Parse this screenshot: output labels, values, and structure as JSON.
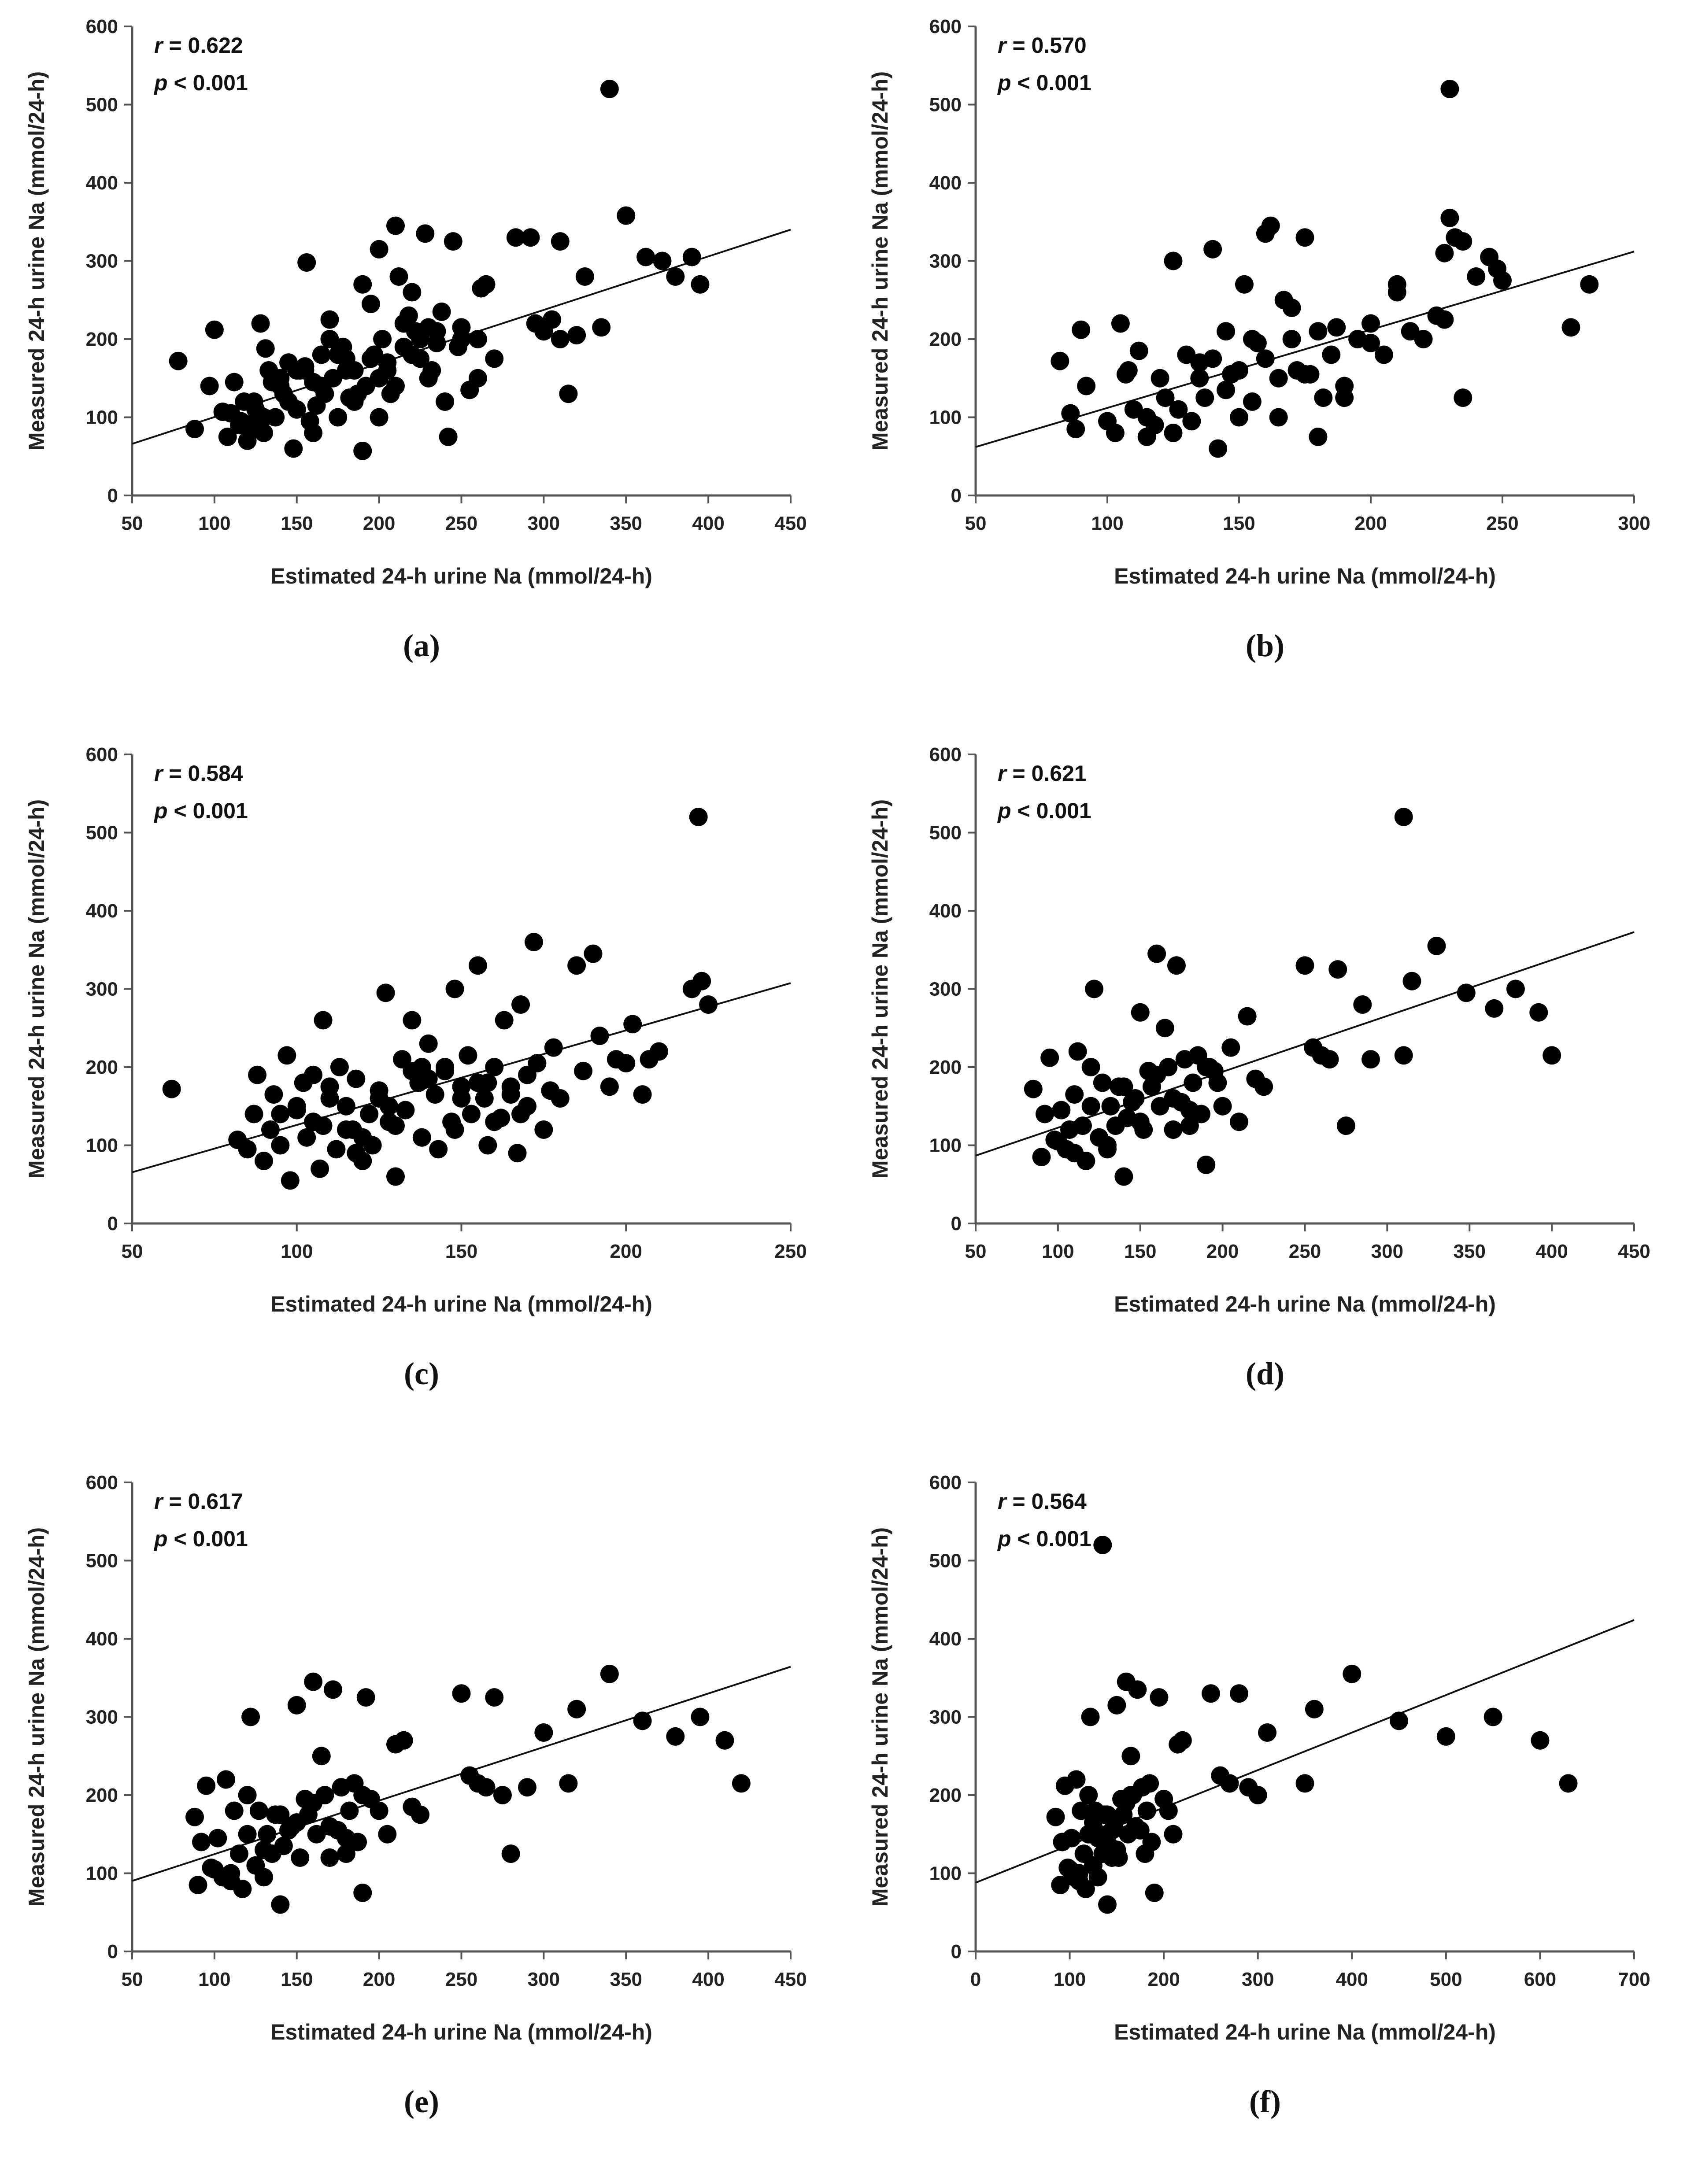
{
  "figure": {
    "ylabel": "Measured 24-h urine Na (mmol/24-h)",
    "xlabel": "Estimated 24-h urine Na (mmol/24-h)"
  },
  "chart_data": [
    {
      "panel": "(a)",
      "type": "scatter",
      "r_prefix": "r",
      "r_value": "= 0.622",
      "p_prefix": "p",
      "p_value": "< 0.001",
      "xlabel": "Estimated 24-h urine Na (mmol/24-h)",
      "ylabel": "Measured 24-h urine Na (mmol/24-h)",
      "xlim": [
        50,
        450
      ],
      "xticks": [
        50,
        100,
        150,
        200,
        250,
        300,
        350,
        400,
        450
      ],
      "ylim": [
        0,
        600
      ],
      "yticks": [
        0,
        100,
        200,
        300,
        400,
        500,
        600
      ],
      "fit": {
        "slope": 0.685,
        "intercept": 31.8
      },
      "x": [
        78,
        88,
        97,
        100,
        105,
        110,
        112,
        116,
        118,
        120,
        122,
        124,
        126,
        128,
        130,
        131,
        133,
        135,
        137,
        140,
        142,
        145,
        148,
        150,
        152,
        155,
        156,
        158,
        160,
        162,
        165,
        167,
        170,
        172,
        175,
        178,
        180,
        182,
        185,
        187,
        190,
        192,
        195,
        197,
        200,
        202,
        205,
        207,
        210,
        212,
        215,
        218,
        220,
        222,
        225,
        228,
        230,
        232,
        235,
        238,
        240,
        242,
        245,
        248,
        250,
        255,
        260,
        262,
        265,
        270,
        292,
        295,
        300,
        305,
        310,
        315,
        320,
        325,
        335,
        340,
        350,
        362,
        372,
        380,
        390,
        395,
        210,
        225,
        200,
        190,
        160,
        175,
        205,
        215,
        235,
        145,
        125,
        115,
        108,
        140,
        155,
        170,
        185,
        200,
        220,
        180,
        165,
        150,
        130,
        120,
        195,
        230,
        250,
        260,
        283,
        300,
        310
      ],
      "y": [
        172,
        85,
        140,
        212,
        107,
        105,
        145,
        95,
        120,
        90,
        85,
        120,
        100,
        220,
        80,
        188,
        160,
        145,
        100,
        150,
        130,
        170,
        60,
        110,
        160,
        165,
        298,
        95,
        145,
        115,
        180,
        130,
        225,
        150,
        100,
        190,
        175,
        125,
        160,
        130,
        57,
        140,
        245,
        180,
        150,
        200,
        170,
        130,
        140,
        280,
        190,
        230,
        260,
        210,
        175,
        335,
        150,
        160,
        210,
        235,
        120,
        75,
        325,
        190,
        215,
        135,
        200,
        265,
        270,
        175,
        330,
        220,
        210,
        225,
        200,
        130,
        205,
        280,
        215,
        520,
        358,
        305,
        300,
        280,
        305,
        270,
        345,
        200,
        315,
        270,
        80,
        180,
        160,
        220,
        195,
        120,
        110,
        90,
        75,
        140,
        160,
        200,
        120,
        100,
        180,
        160,
        140,
        160,
        100,
        70,
        175,
        215,
        200,
        150,
        330,
        210,
        325
      ]
    },
    {
      "panel": "(b)",
      "type": "scatter",
      "r_prefix": "r",
      "r_value": "= 0.570",
      "p_prefix": "p",
      "p_value": "< 0.001",
      "xlabel": "Estimated 24-h urine Na (mmol/24-h)",
      "ylabel": "Measured 24-h urine Na (mmol/24-h)",
      "xlim": [
        50,
        300
      ],
      "xticks": [
        50,
        100,
        150,
        200,
        250,
        300
      ],
      "ylim": [
        0,
        600
      ],
      "yticks": [
        0,
        100,
        200,
        300,
        400,
        500,
        600
      ],
      "fit": {
        "slope": 1.0,
        "intercept": 12
      },
      "x": [
        82,
        86,
        88,
        90,
        92,
        100,
        103,
        105,
        107,
        110,
        112,
        115,
        118,
        120,
        122,
        125,
        127,
        130,
        132,
        135,
        137,
        140,
        142,
        145,
        147,
        150,
        152,
        155,
        157,
        160,
        162,
        165,
        167,
        170,
        172,
        175,
        177,
        180,
        182,
        185,
        187,
        190,
        195,
        200,
        205,
        210,
        215,
        220,
        225,
        228,
        230,
        232,
        235,
        240,
        245,
        248,
        250,
        276,
        283,
        125,
        140,
        150,
        160,
        170,
        180,
        190,
        200,
        210,
        145,
        135,
        155,
        165,
        175,
        115,
        108,
        230,
        228,
        235
      ],
      "y": [
        172,
        105,
        85,
        212,
        140,
        95,
        80,
        220,
        155,
        110,
        185,
        100,
        90,
        150,
        125,
        300,
        110,
        180,
        95,
        150,
        125,
        175,
        60,
        135,
        155,
        160,
        270,
        120,
        195,
        175,
        345,
        150,
        250,
        200,
        160,
        330,
        155,
        210,
        125,
        180,
        215,
        140,
        200,
        195,
        180,
        270,
        210,
        200,
        230,
        310,
        355,
        330,
        325,
        280,
        305,
        290,
        275,
        215,
        270,
        80,
        315,
        100,
        335,
        240,
        75,
        125,
        220,
        260,
        210,
        170,
        200,
        100,
        155,
        75,
        160,
        520,
        225,
        125
      ]
    },
    {
      "panel": "(c)",
      "type": "scatter",
      "r_prefix": "r",
      "r_value": "= 0.584",
      "p_prefix": "p",
      "p_value": "< 0.001",
      "xlabel": "Estimated 24-h urine Na (mmol/24-h)",
      "ylabel": "Measured 24-h urine Na (mmol/24-h)",
      "xlim": [
        50,
        250
      ],
      "xticks": [
        50,
        100,
        150,
        200,
        250
      ],
      "ylim": [
        0,
        600
      ],
      "yticks": [
        0,
        100,
        200,
        300,
        400,
        500,
        600
      ],
      "fit": {
        "slope": 1.21,
        "intercept": 5
      },
      "x": [
        62,
        82,
        85,
        87,
        88,
        90,
        92,
        93,
        95,
        97,
        98,
        100,
        102,
        103,
        105,
        107,
        108,
        110,
        112,
        113,
        115,
        117,
        118,
        120,
        122,
        123,
        125,
        127,
        128,
        130,
        132,
        133,
        135,
        137,
        138,
        140,
        142,
        143,
        145,
        147,
        148,
        150,
        152,
        153,
        155,
        157,
        158,
        160,
        162,
        163,
        165,
        167,
        168,
        170,
        172,
        173,
        175,
        177,
        178,
        180,
        185,
        187,
        190,
        192,
        195,
        197,
        200,
        202,
        205,
        207,
        210,
        220,
        223,
        225,
        108,
        118,
        128,
        138,
        148,
        158,
        168,
        100,
        110,
        120,
        130,
        140,
        150,
        160,
        170,
        95,
        105,
        115,
        125,
        135,
        145,
        155,
        165,
        222
      ],
      "y": [
        172,
        107,
        95,
        140,
        190,
        80,
        120,
        165,
        100,
        215,
        55,
        145,
        180,
        110,
        130,
        70,
        260,
        160,
        95,
        200,
        150,
        120,
        185,
        80,
        140,
        100,
        170,
        295,
        130,
        60,
        210,
        145,
        260,
        180,
        110,
        230,
        165,
        95,
        195,
        130,
        300,
        175,
        215,
        140,
        330,
        160,
        100,
        200,
        135,
        260,
        175,
        90,
        280,
        150,
        360,
        205,
        120,
        170,
        225,
        160,
        330,
        195,
        345,
        240,
        175,
        210,
        205,
        255,
        165,
        210,
        220,
        300,
        310,
        280,
        125,
        90,
        150,
        200,
        120,
        180,
        140,
        150,
        175,
        110,
        125,
        185,
        160,
        130,
        190,
        140,
        190,
        120,
        160,
        195,
        200,
        180,
        165,
        520
      ]
    },
    {
      "panel": "(d)",
      "type": "scatter",
      "r_prefix": "r",
      "r_value": "= 0.621",
      "p_prefix": "p",
      "p_value": "< 0.001",
      "xlabel": "Estimated 24-h urine Na (mmol/24-h)",
      "ylabel": "Measured 24-h urine Na (mmol/24-h)",
      "xlim": [
        50,
        450
      ],
      "xticks": [
        50,
        100,
        150,
        200,
        250,
        300,
        350,
        400,
        450
      ],
      "ylim": [
        0,
        600
      ],
      "yticks": [
        0,
        100,
        200,
        300,
        400,
        500,
        600
      ],
      "fit": {
        "slope": 0.715,
        "intercept": 51
      },
      "x": [
        85,
        90,
        92,
        95,
        98,
        100,
        102,
        105,
        107,
        110,
        112,
        115,
        117,
        120,
        122,
        125,
        127,
        130,
        132,
        135,
        137,
        140,
        142,
        145,
        147,
        150,
        152,
        155,
        157,
        160,
        162,
        165,
        167,
        170,
        172,
        175,
        177,
        180,
        182,
        185,
        187,
        190,
        192,
        195,
        197,
        200,
        205,
        210,
        215,
        220,
        225,
        250,
        255,
        260,
        265,
        270,
        275,
        285,
        290,
        310,
        315,
        330,
        348,
        365,
        378,
        392,
        400,
        120,
        140,
        160,
        180,
        150,
        130,
        110,
        170,
        190,
        310
      ],
      "y": [
        172,
        85,
        140,
        212,
        107,
        105,
        145,
        95,
        120,
        90,
        220,
        125,
        80,
        150,
        300,
        110,
        180,
        95,
        150,
        125,
        175,
        60,
        135,
        155,
        160,
        270,
        120,
        195,
        175,
        345,
        150,
        250,
        200,
        160,
        330,
        155,
        210,
        125,
        180,
        215,
        140,
        75,
        200,
        195,
        180,
        150,
        225,
        130,
        265,
        185,
        175,
        330,
        225,
        215,
        210,
        325,
        125,
        280,
        210,
        215,
        310,
        355,
        295,
        275,
        300,
        270,
        215,
        200,
        175,
        190,
        145,
        130,
        100,
        165,
        120,
        200,
        520
      ]
    },
    {
      "panel": "(e)",
      "type": "scatter",
      "r_prefix": "r",
      "r_value": "= 0.617",
      "p_prefix": "p",
      "p_value": "< 0.001",
      "xlabel": "Estimated 24-h urine Na (mmol/24-h)",
      "ylabel": "Measured 24-h urine Na (mmol/24-h)",
      "xlim": [
        50,
        450
      ],
      "xticks": [
        50,
        100,
        150,
        200,
        250,
        300,
        350,
        400,
        450
      ],
      "ylim": [
        0,
        600
      ],
      "yticks": [
        0,
        100,
        200,
        300,
        400,
        500,
        600
      ],
      "fit": {
        "slope": 0.685,
        "intercept": 56
      },
      "x": [
        88,
        90,
        92,
        95,
        98,
        100,
        102,
        105,
        107,
        110,
        112,
        115,
        117,
        120,
        122,
        125,
        127,
        130,
        132,
        135,
        137,
        140,
        142,
        145,
        147,
        150,
        152,
        155,
        157,
        160,
        162,
        165,
        167,
        170,
        172,
        175,
        177,
        180,
        182,
        185,
        187,
        190,
        192,
        195,
        200,
        205,
        210,
        215,
        220,
        225,
        250,
        255,
        260,
        265,
        270,
        275,
        280,
        290,
        300,
        315,
        320,
        340,
        360,
        380,
        395,
        410,
        420,
        120,
        140,
        160,
        180,
        130,
        110,
        150,
        170,
        190
      ],
      "y": [
        172,
        85,
        140,
        212,
        107,
        105,
        145,
        95,
        220,
        90,
        180,
        125,
        80,
        150,
        300,
        110,
        180,
        95,
        150,
        125,
        175,
        60,
        135,
        155,
        160,
        315,
        120,
        195,
        175,
        345,
        150,
        250,
        200,
        160,
        335,
        155,
        210,
        125,
        180,
        215,
        140,
        75,
        325,
        195,
        180,
        150,
        265,
        270,
        185,
        175,
        330,
        225,
        215,
        210,
        325,
        200,
        125,
        210,
        280,
        215,
        310,
        355,
        295,
        275,
        300,
        270,
        215,
        200,
        175,
        190,
        145,
        130,
        100,
        165,
        120,
        200
      ]
    },
    {
      "panel": "(f)",
      "type": "scatter",
      "r_prefix": "r",
      "r_value": "= 0.564",
      "p_prefix": "p",
      "p_value": "< 0.001",
      "xlabel": "Estimated 24-h urine Na (mmol/24-h)",
      "ylabel": "Measured 24-h urine Na (mmol/24-h)",
      "xlim": [
        0,
        700
      ],
      "xticks": [
        0,
        100,
        200,
        300,
        400,
        500,
        600,
        700
      ],
      "ylim": [
        0,
        600
      ],
      "yticks": [
        0,
        100,
        200,
        300,
        400,
        500,
        600
      ],
      "fit": {
        "slope": 0.48,
        "intercept": 88
      },
      "x": [
        85,
        90,
        92,
        95,
        98,
        100,
        102,
        105,
        107,
        110,
        112,
        115,
        117,
        120,
        122,
        125,
        127,
        130,
        132,
        135,
        137,
        140,
        142,
        145,
        147,
        150,
        152,
        155,
        157,
        160,
        162,
        165,
        167,
        170,
        172,
        175,
        177,
        180,
        182,
        185,
        187,
        190,
        195,
        200,
        205,
        210,
        215,
        220,
        250,
        260,
        270,
        280,
        290,
        300,
        310,
        350,
        360,
        400,
        450,
        500,
        550,
        600,
        630,
        120,
        140,
        160,
        130,
        150,
        110,
        125,
        145,
        165,
        135
      ],
      "y": [
        172,
        85,
        140,
        212,
        107,
        105,
        145,
        95,
        220,
        90,
        180,
        125,
        80,
        150,
        300,
        110,
        180,
        95,
        150,
        125,
        175,
        60,
        135,
        155,
        160,
        315,
        120,
        195,
        175,
        345,
        150,
        250,
        200,
        160,
        335,
        155,
        210,
        125,
        180,
        215,
        140,
        75,
        325,
        195,
        180,
        150,
        265,
        270,
        330,
        225,
        215,
        330,
        210,
        200,
        280,
        215,
        310,
        355,
        295,
        275,
        300,
        270,
        215,
        200,
        175,
        190,
        145,
        130,
        100,
        165,
        120,
        200,
        520
      ]
    }
  ]
}
